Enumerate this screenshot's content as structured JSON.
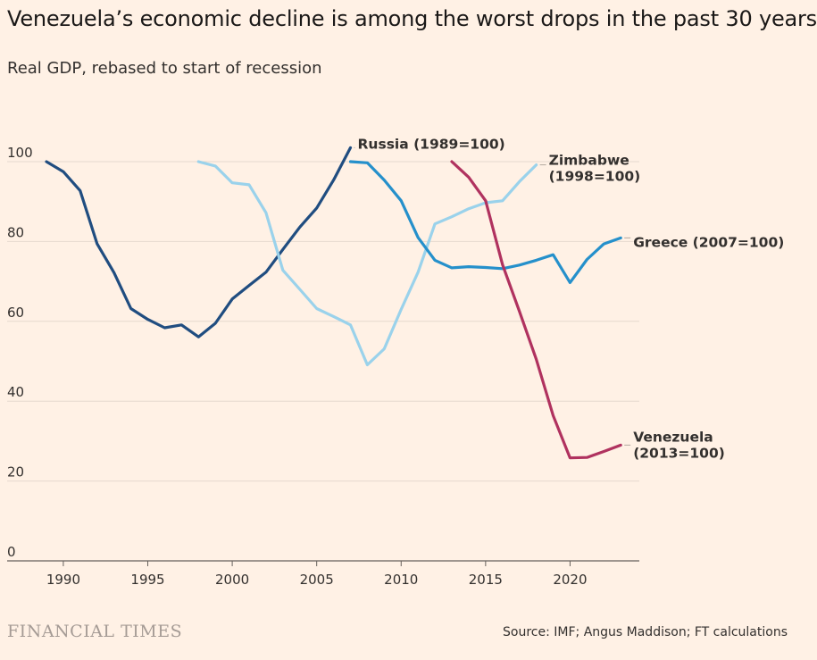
{
  "title": "Venezuela’s economic decline is among the worst drops in the past 30 years",
  "subtitle": "Real GDP, rebased to start of recession",
  "brand": "FINANCIAL TIMES",
  "source": "Source: IMF; Angus Maddison; FT calculations",
  "chart_data": {
    "type": "line",
    "title": "Venezuela’s economic decline is among the worst drops in the past 30 years",
    "subtitle": "Real GDP, rebased to start of recession",
    "xlabel": "",
    "ylabel": "",
    "xlim": [
      1989,
      2024
    ],
    "ylim": [
      0,
      100
    ],
    "x_ticks": [
      1990,
      1995,
      2000,
      2005,
      2010,
      2015,
      2020
    ],
    "y_ticks": [
      0,
      20,
      40,
      60,
      80,
      100
    ],
    "grid": "horizontal",
    "legend": "direct labels at line ends",
    "series": [
      {
        "name": "Russia (1989=100)",
        "label_lines": [
          "Russia (1989=100)"
        ],
        "color": "#204d80",
        "x": [
          1989,
          1990,
          1991,
          1992,
          1993,
          1994,
          1995,
          1996,
          1997,
          1998,
          1999,
          2000,
          2001,
          2002,
          2003,
          2004,
          2005,
          2006,
          2007
        ],
        "y": [
          100,
          97.5,
          92.7,
          79.4,
          72.2,
          63.2,
          60.5,
          58.4,
          59.1,
          56.1,
          59.5,
          65.6,
          69.0,
          72.3,
          78.0,
          83.6,
          88.4,
          95.4,
          103.5
        ]
      },
      {
        "name": "Zimbabwe (1998=100)",
        "label_lines": [
          "Zimbabwe",
          "(1998=100)"
        ],
        "color": "#9ad2eb",
        "x": [
          1998,
          1999,
          2000,
          2001,
          2002,
          2003,
          2004,
          2005,
          2006,
          2007,
          2008,
          2009,
          2010,
          2011,
          2012,
          2013,
          2014,
          2015,
          2016,
          2017,
          2018
        ],
        "y": [
          100,
          98.9,
          94.7,
          94.2,
          87.2,
          72.8,
          68.0,
          63.2,
          61.2,
          59.1,
          49.1,
          53.1,
          63.0,
          72.3,
          84.4,
          86.2,
          88.2,
          89.7,
          90.2,
          95.0,
          99.2
        ]
      },
      {
        "name": "Greece (2007=100)",
        "label_lines": [
          "Greece (2007=100)"
        ],
        "color": "#2590cb",
        "x": [
          2007,
          2008,
          2009,
          2010,
          2011,
          2012,
          2013,
          2014,
          2015,
          2016,
          2017,
          2018,
          2019,
          2020,
          2021,
          2022,
          2023
        ],
        "y": [
          100,
          99.7,
          95.4,
          90.2,
          81.0,
          75.3,
          73.4,
          73.7,
          73.5,
          73.2,
          74.1,
          75.3,
          76.7,
          69.7,
          75.5,
          79.4,
          80.9
        ]
      },
      {
        "name": "Venezuela (2013=100)",
        "label_lines": [
          "Venezuela",
          "(2013=100)"
        ],
        "color": "#b0325f",
        "x": [
          2013,
          2014,
          2015,
          2016,
          2017,
          2018,
          2019,
          2020,
          2021,
          2022,
          2023
        ],
        "y": [
          100,
          96.1,
          90.2,
          74.2,
          62.5,
          50.5,
          36.4,
          25.8,
          25.9,
          27.4,
          29.0
        ]
      }
    ]
  }
}
